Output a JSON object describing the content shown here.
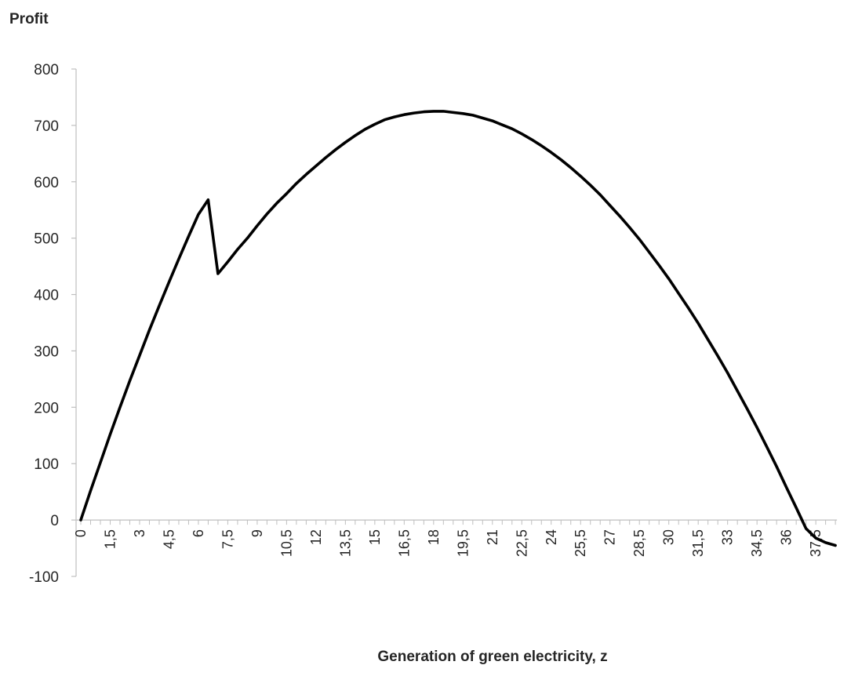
{
  "chart_data": {
    "type": "line",
    "title": "",
    "xlabel": "Generation of green electricity, z",
    "ylabel": "Profit",
    "ylim": [
      -100,
      800
    ],
    "yticks": [
      -100,
      0,
      100,
      200,
      300,
      400,
      500,
      600,
      700,
      800
    ],
    "yticks_labels": [
      "-100",
      "0",
      "100",
      "200",
      "300",
      "400",
      "500",
      "600",
      "700",
      "800"
    ],
    "xlim": [
      0,
      38.5
    ],
    "xticks_labels": [
      "0",
      "1,5",
      "3",
      "4,5",
      "6",
      "7,5",
      "9",
      "10,5",
      "12",
      "13,5",
      "15",
      "16,5",
      "18",
      "19,5",
      "21",
      "22,5",
      "24",
      "25,5",
      "27",
      "28,5",
      "30",
      "31,5",
      "33",
      "34,5",
      "36",
      "37,5"
    ],
    "xticks_values": [
      0,
      1.5,
      3,
      4.5,
      6,
      7.5,
      9,
      10.5,
      12,
      13.5,
      15,
      16.5,
      18,
      19.5,
      21,
      22.5,
      24,
      25.5,
      27,
      28.5,
      30,
      31.5,
      33,
      34.5,
      36,
      37.5
    ],
    "grid": false,
    "legend": "none",
    "line_color": "#000000",
    "series": [
      {
        "x": [
          0,
          0.5,
          1,
          1.5,
          2,
          2.5,
          3,
          3.5,
          4,
          4.5,
          5,
          5.5,
          6,
          6.5,
          7,
          7.5,
          8,
          8.5,
          9,
          9.5,
          10,
          10.5,
          11,
          11.5,
          12,
          12.5,
          13,
          13.5,
          14,
          14.5,
          15,
          15.5,
          16,
          16.5,
          17,
          17.5,
          18,
          18.5,
          19,
          19.5,
          20,
          20.5,
          21,
          21.5,
          22,
          22.5,
          23,
          23.5,
          24,
          24.5,
          25,
          25.5,
          26,
          26.5,
          27,
          27.5,
          28,
          28.5,
          29,
          29.5,
          30,
          30.5,
          31,
          31.5,
          32,
          32.5,
          33,
          33.5,
          34,
          34.5,
          35,
          35.5,
          36,
          36.5,
          37,
          37.5,
          38,
          38.5
        ],
        "values": [
          0,
          52,
          102,
          152,
          200,
          247,
          292,
          337,
          380,
          422,
          463,
          503,
          542,
          568,
          437,
          458,
          480,
          500,
          522,
          543,
          562,
          579,
          597,
          613,
          628,
          643,
          657,
          670,
          682,
          693,
          702,
          710,
          715,
          719,
          722,
          724,
          725,
          725,
          723,
          721,
          718,
          713,
          708,
          701,
          694,
          685,
          675,
          664,
          652,
          639,
          625,
          610,
          594,
          577,
          558,
          539,
          519,
          498,
          475,
          452,
          428,
          402,
          376,
          349,
          320,
          291,
          261,
          229,
          197,
          164,
          130,
          95,
          58,
          22,
          -15,
          -32,
          -40,
          -45
        ]
      }
    ]
  }
}
